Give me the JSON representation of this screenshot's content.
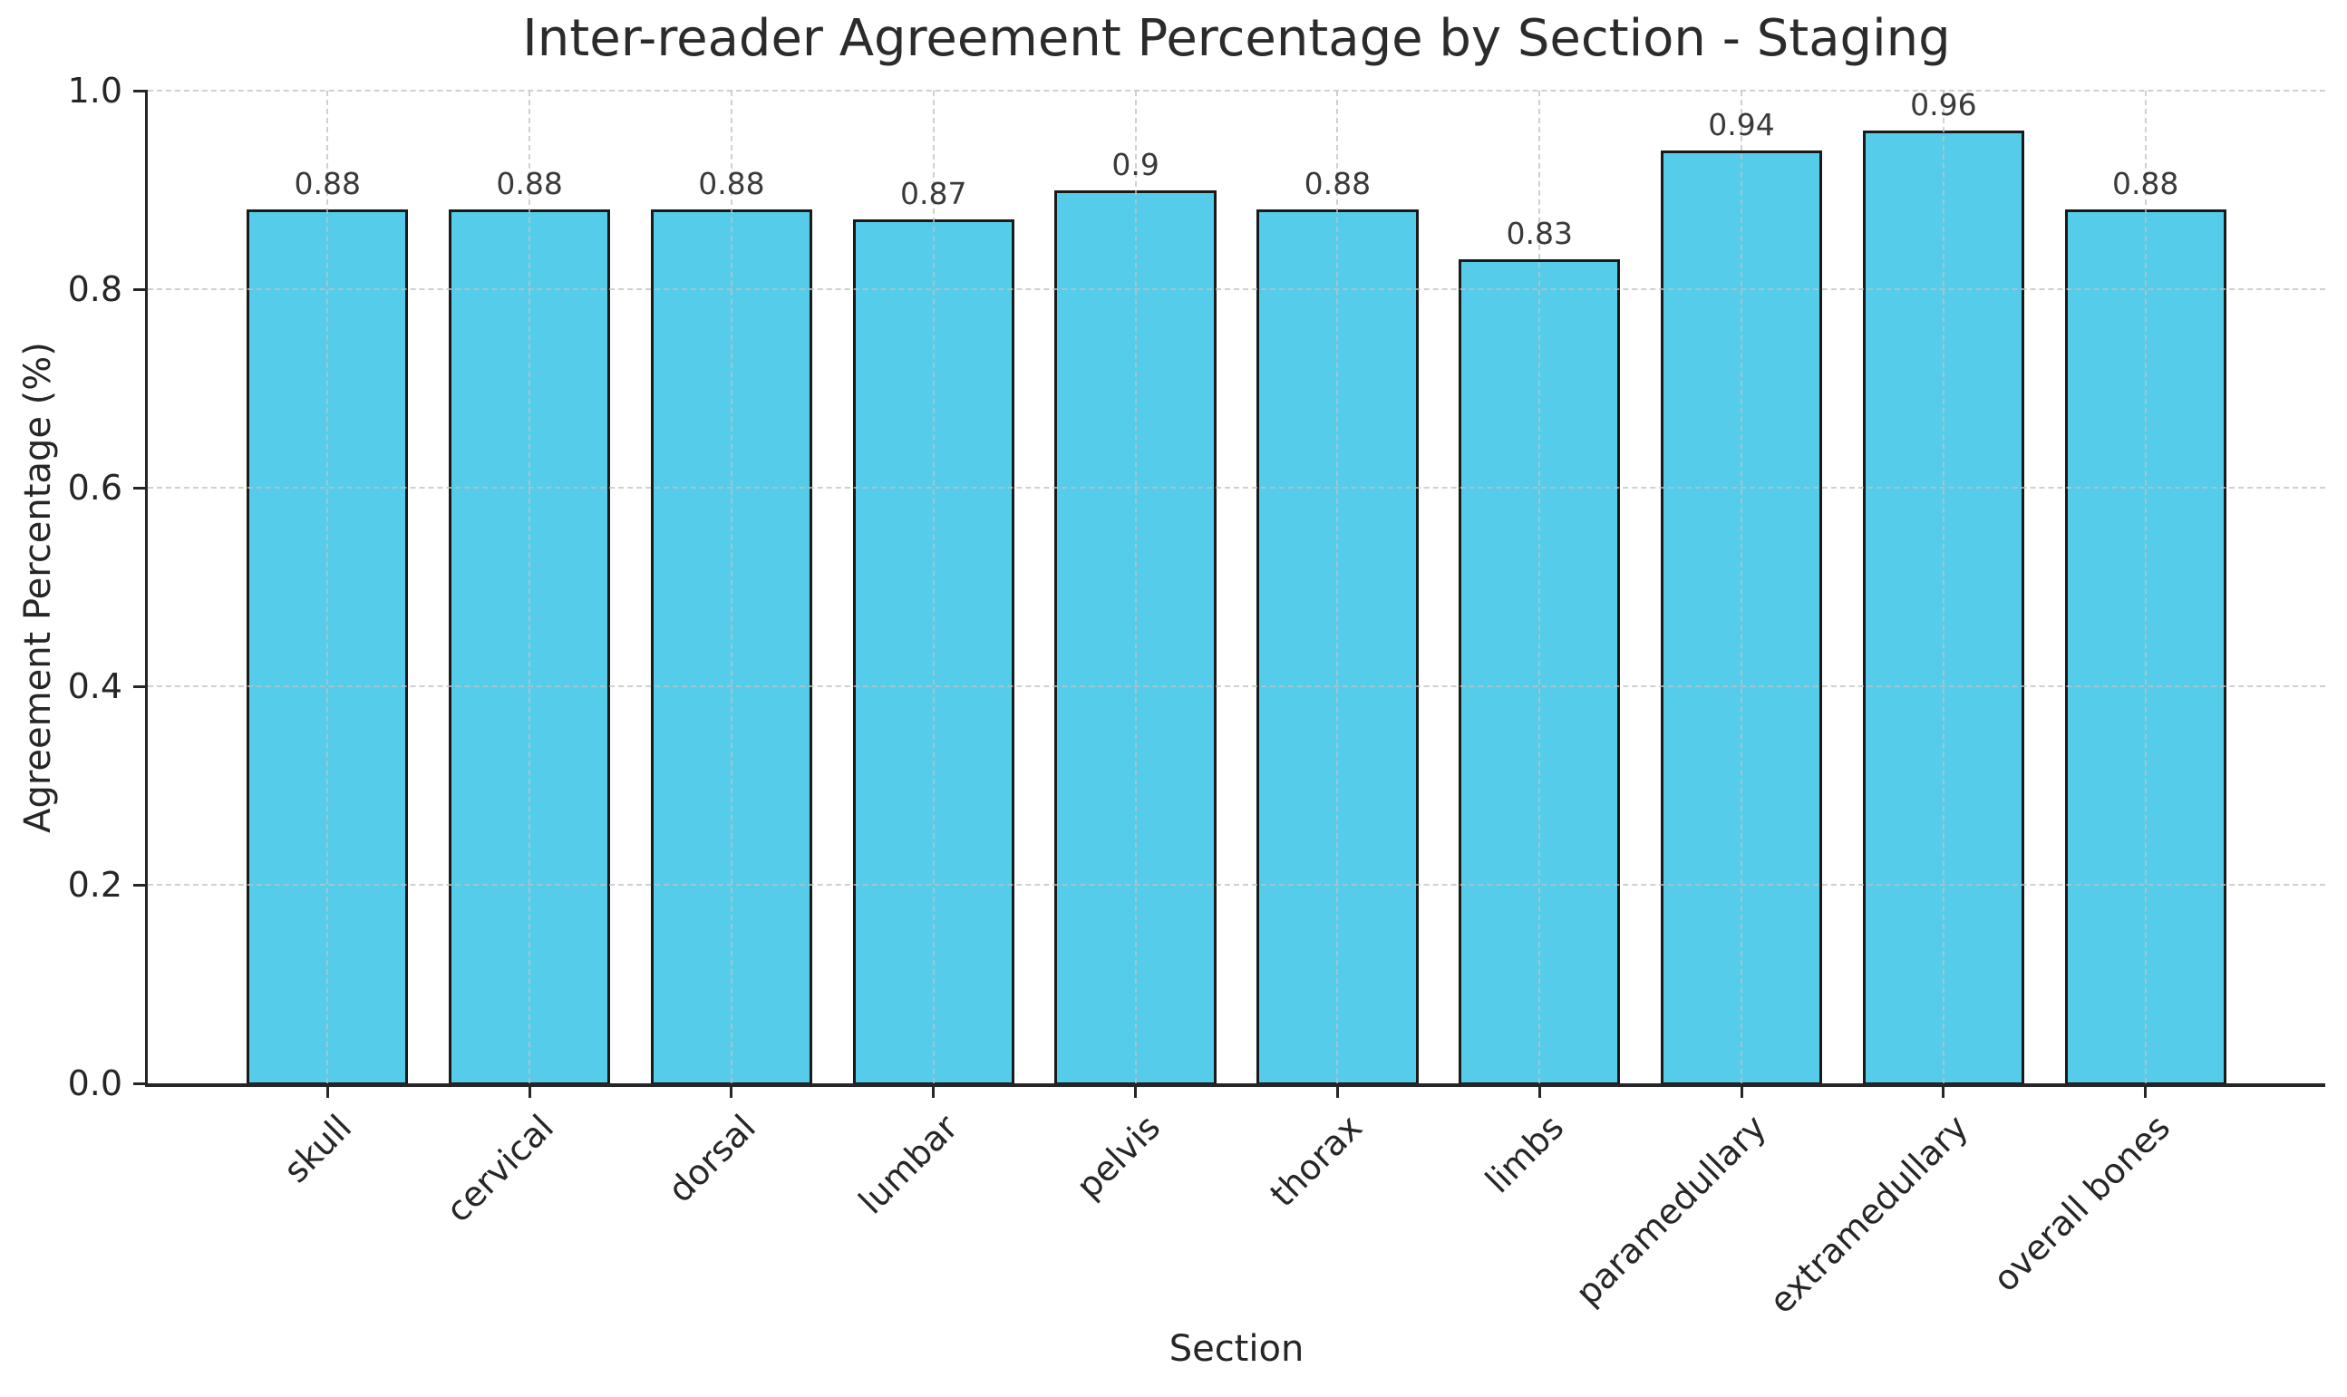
{
  "figure": {
    "title": "Inter-reader Agreement Percentage by Section - Staging"
  },
  "chart_data": {
    "type": "bar",
    "title": "Inter-reader Agreement Percentage by Section - Staging",
    "xlabel": "Section",
    "ylabel": "Agreement Percentage (%)",
    "categories": [
      "skull",
      "cervical",
      "dorsal",
      "lumbar",
      "pelvis",
      "thorax",
      "limbs",
      "paramedullary",
      "extramedullary",
      "overall bones"
    ],
    "values": [
      0.88,
      0.88,
      0.88,
      0.87,
      0.9,
      0.88,
      0.83,
      0.94,
      0.96,
      0.88
    ],
    "value_labels": [
      "0.88",
      "0.88",
      "0.88",
      "0.87",
      "0.9",
      "0.88",
      "0.83",
      "0.94",
      "0.96",
      "0.88"
    ],
    "ylim": [
      0.0,
      1.0
    ],
    "yticks": [
      0.0,
      0.2,
      0.4,
      0.6,
      0.8,
      1.0
    ],
    "ytick_labels": [
      "0.0",
      "0.2",
      "0.4",
      "0.6",
      "0.8",
      "1.0"
    ],
    "grid": true,
    "grid_style": "dashed",
    "legend": "none",
    "bar_color": "#55CDEA",
    "bar_edge_color": "#1a1a1a",
    "x_tick_rotation_deg": 45
  }
}
